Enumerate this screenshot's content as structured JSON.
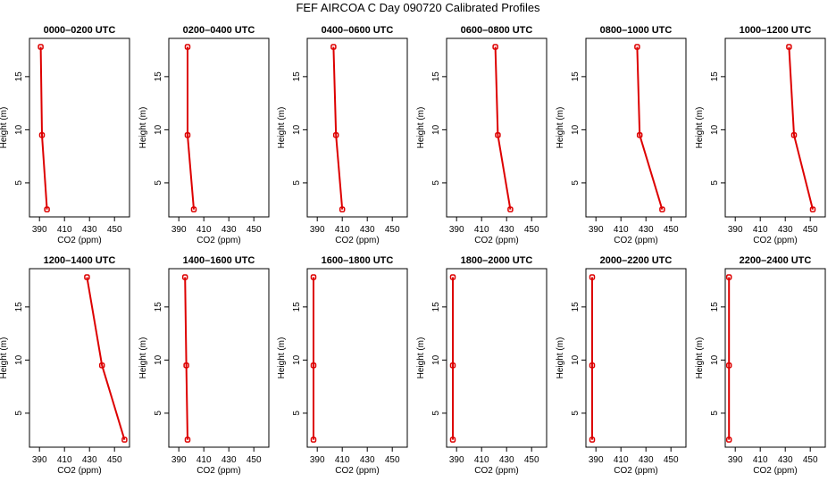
{
  "chart_data": {
    "type": "line",
    "title": "FEF AIRCOA C  Day 090720  Calibrated Profiles",
    "xlabel": "CO2 (ppm)",
    "ylabel": "Height (m)",
    "xlim": [
      382,
      462
    ],
    "ylim": [
      1.8,
      18.6
    ],
    "xticks": [
      390,
      410,
      430,
      450
    ],
    "yticks": [
      5,
      10,
      15
    ],
    "heights": [
      2.5,
      9.5,
      17.8
    ],
    "series_color": "#dd0000",
    "panels": [
      {
        "title": "0000–0200 UTC",
        "co2": [
          396,
          392,
          391
        ]
      },
      {
        "title": "0200–0400 UTC",
        "co2": [
          402,
          397,
          397
        ]
      },
      {
        "title": "0400–0600 UTC",
        "co2": [
          410,
          405,
          403
        ]
      },
      {
        "title": "0600–0800 UTC",
        "co2": [
          433,
          423,
          421
        ]
      },
      {
        "title": "0800–1000 UTC",
        "co2": [
          443,
          425,
          423
        ]
      },
      {
        "title": "1000–1200 UTC",
        "co2": [
          452,
          437,
          433
        ]
      },
      {
        "title": "1200–1400 UTC",
        "co2": [
          458,
          440,
          428
        ]
      },
      {
        "title": "1400–1600 UTC",
        "co2": [
          397,
          396,
          395
        ]
      },
      {
        "title": "1600–1800 UTC",
        "co2": [
          387,
          387,
          387
        ]
      },
      {
        "title": "1800–2000 UTC",
        "co2": [
          387,
          387,
          387
        ]
      },
      {
        "title": "2000–2200 UTC",
        "co2": [
          387,
          387,
          387
        ]
      },
      {
        "title": "2200–2400 UTC",
        "co2": [
          385,
          385,
          385
        ]
      }
    ]
  }
}
